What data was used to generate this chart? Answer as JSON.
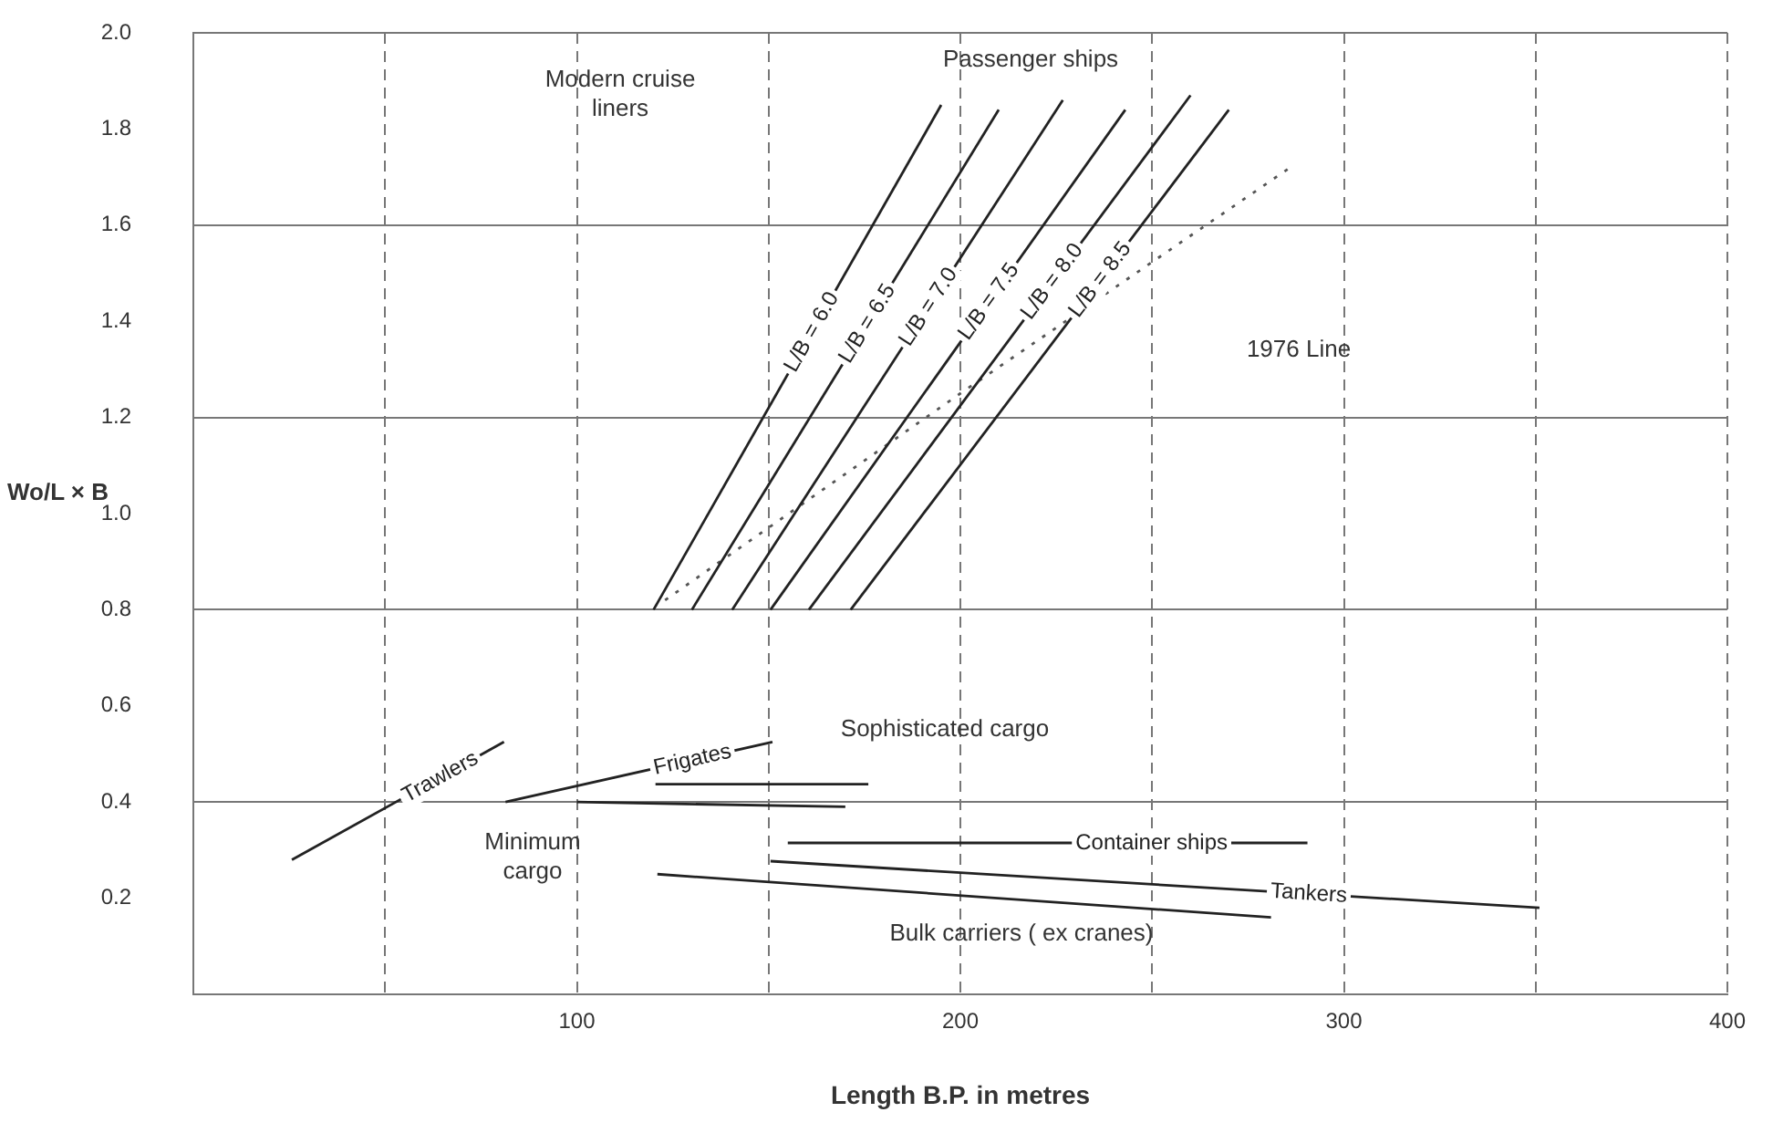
{
  "chart_data": {
    "type": "line",
    "xlabel": "Length B.P. in metres",
    "ylabel": "Wo/L × B",
    "xlim": [
      0,
      400
    ],
    "ylim": [
      0,
      2.0
    ],
    "xticks": [
      {
        "value": 50,
        "label": null
      },
      100,
      {
        "value": 150,
        "label": null
      },
      200,
      {
        "value": 250,
        "label": null
      },
      300,
      {
        "value": 350,
        "label": null
      },
      400
    ],
    "yticks": [
      0.2,
      0.4,
      0.6,
      0.8,
      {
        "value": 1,
        "label": "1.0"
      },
      1.2,
      1.4,
      1.6,
      1.8,
      {
        "value": 2,
        "label": "2.0"
      }
    ],
    "grid": true,
    "legend": false,
    "marker": "none",
    "series": [
      {
        "name": "L/B = 6.0",
        "color": "#222222",
        "x": [
          120,
          195
        ],
        "values": [
          0.8,
          1.85
        ]
      },
      {
        "name": "L/B = 6.5",
        "color": "#222222",
        "x": [
          130,
          210
        ],
        "values": [
          0.8,
          1.84
        ]
      },
      {
        "name": "L/B = 7.0",
        "color": "#222222",
        "x": [
          140.5,
          226.7
        ],
        "values": [
          0.8,
          1.86
        ]
      },
      {
        "name": "L/B = 7.5",
        "color": "#222222",
        "x": [
          150.5,
          243
        ],
        "values": [
          0.8,
          1.84
        ]
      },
      {
        "name": "L/B = 8.0",
        "color": "#222222",
        "x": [
          160.5,
          260
        ],
        "values": [
          0.8,
          1.87
        ]
      },
      {
        "name": "L/B = 8.5",
        "color": "#222222",
        "x": [
          171.4,
          270
        ],
        "values": [
          0.8,
          1.84
        ]
      },
      {
        "color": "#555555",
        "line_style": "dotted",
        "x": [
          123,
          200,
          286
        ],
        "values": [
          0.82,
          1.25,
          1.72
        ]
      },
      {
        "name": "Trawlers",
        "color": "#222222",
        "x": [
          25.7,
          81
        ],
        "values": [
          0.28,
          0.525
        ]
      },
      {
        "name": "Frigates",
        "color": "#222222",
        "x": [
          81.4,
          151
        ],
        "values": [
          0.4,
          0.525
        ]
      },
      {
        "color": "#222222",
        "x": [
          120.5,
          176
        ],
        "values": [
          0.437,
          0.437
        ]
      },
      {
        "color": "#222222",
        "x": [
          100,
          170
        ],
        "values": [
          0.4,
          0.39
        ]
      },
      {
        "name": "Container ships",
        "color": "#222222",
        "x": [
          155,
          290.5
        ],
        "values": [
          0.315,
          0.315
        ]
      },
      {
        "name": "Tankers",
        "color": "#222222",
        "x": [
          150.5,
          351
        ],
        "values": [
          0.277,
          0.18
        ]
      },
      {
        "color": "#222222",
        "x": [
          121,
          281
        ],
        "values": [
          0.25,
          0.16
        ]
      }
    ],
    "annotations": [
      "Passenger ships",
      "Modern cruise liners",
      "1976 Line",
      "Sophisticated cargo",
      "Minimum cargo",
      "Bulk carriers ( ex cranes)"
    ]
  }
}
